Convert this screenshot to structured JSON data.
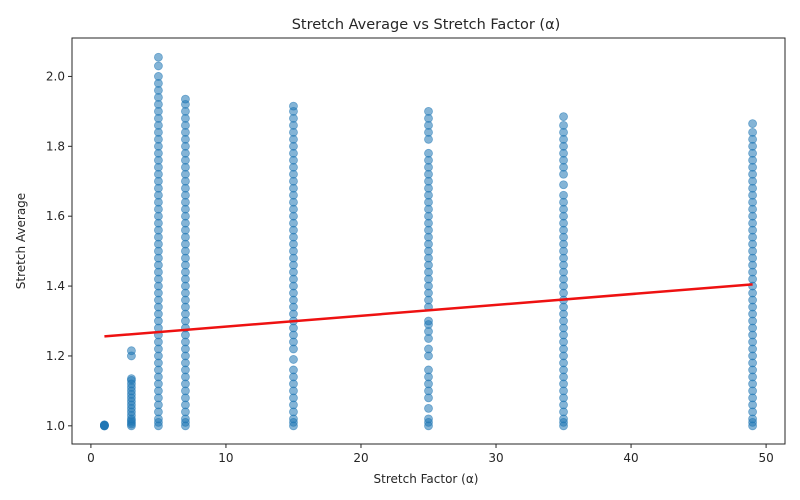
{
  "chart_data": {
    "type": "scatter",
    "title": "Stretch Average vs Stretch Factor (α)",
    "xlabel": "Stretch Factor (α)",
    "ylabel": "Stretch Average",
    "xlim": [
      -1.4,
      51.4
    ],
    "ylim": [
      0.948,
      2.11
    ],
    "x_ticks": [
      0,
      10,
      20,
      30,
      40,
      50
    ],
    "x_tick_labels": [
      "0",
      "10",
      "20",
      "30",
      "40",
      "50"
    ],
    "y_ticks": [
      1.0,
      1.2,
      1.4,
      1.6,
      1.8,
      2.0
    ],
    "y_tick_labels": [
      "1.0",
      "1.2",
      "1.4",
      "1.6",
      "1.8",
      "2.0"
    ],
    "grid": false,
    "legend": "none",
    "point_color": "#1f77b4",
    "point_alpha": 0.55,
    "trend_color": "#ee1111",
    "columns": [
      {
        "x": 1,
        "y": [
          1.0,
          1.001,
          1.002,
          1.0,
          1.001,
          1.003,
          1.0,
          1.002
        ]
      },
      {
        "x": 3,
        "y": [
          1.0,
          1.005,
          1.01,
          1.015,
          1.02,
          1.03,
          1.04,
          1.05,
          1.06,
          1.07,
          1.08,
          1.09,
          1.1,
          1.11,
          1.12,
          1.13,
          1.135,
          1.2,
          1.215
        ]
      },
      {
        "x": 5,
        "y": [
          1.0,
          1.01,
          1.02,
          1.04,
          1.06,
          1.08,
          1.1,
          1.12,
          1.14,
          1.16,
          1.18,
          1.2,
          1.22,
          1.24,
          1.26,
          1.28,
          1.3,
          1.32,
          1.34,
          1.36,
          1.38,
          1.4,
          1.42,
          1.44,
          1.46,
          1.48,
          1.5,
          1.52,
          1.54,
          1.56,
          1.58,
          1.6,
          1.62,
          1.64,
          1.66,
          1.68,
          1.7,
          1.72,
          1.74,
          1.76,
          1.78,
          1.8,
          1.82,
          1.84,
          1.86,
          1.88,
          1.9,
          1.92,
          1.94,
          1.96,
          1.98,
          2.0,
          2.03,
          2.055
        ]
      },
      {
        "x": 7,
        "y": [
          1.0,
          1.01,
          1.02,
          1.04,
          1.06,
          1.08,
          1.1,
          1.12,
          1.14,
          1.16,
          1.18,
          1.2,
          1.22,
          1.24,
          1.26,
          1.28,
          1.3,
          1.32,
          1.34,
          1.36,
          1.38,
          1.4,
          1.42,
          1.44,
          1.46,
          1.48,
          1.5,
          1.52,
          1.54,
          1.56,
          1.58,
          1.6,
          1.62,
          1.64,
          1.66,
          1.68,
          1.7,
          1.72,
          1.74,
          1.76,
          1.78,
          1.8,
          1.82,
          1.84,
          1.86,
          1.88,
          1.9,
          1.92,
          1.935
        ]
      },
      {
        "x": 15,
        "y": [
          1.0,
          1.01,
          1.02,
          1.04,
          1.06,
          1.08,
          1.1,
          1.12,
          1.14,
          1.16,
          1.19,
          1.22,
          1.24,
          1.26,
          1.28,
          1.3,
          1.32,
          1.34,
          1.36,
          1.38,
          1.4,
          1.42,
          1.44,
          1.46,
          1.48,
          1.5,
          1.52,
          1.54,
          1.56,
          1.58,
          1.6,
          1.62,
          1.64,
          1.66,
          1.68,
          1.7,
          1.72,
          1.74,
          1.76,
          1.78,
          1.8,
          1.82,
          1.84,
          1.86,
          1.88,
          1.9,
          1.915
        ]
      },
      {
        "x": 25,
        "y": [
          1.0,
          1.01,
          1.02,
          1.05,
          1.08,
          1.1,
          1.12,
          1.14,
          1.16,
          1.2,
          1.22,
          1.25,
          1.27,
          1.29,
          1.3,
          1.34,
          1.36,
          1.38,
          1.4,
          1.42,
          1.44,
          1.46,
          1.48,
          1.5,
          1.52,
          1.54,
          1.56,
          1.58,
          1.6,
          1.62,
          1.64,
          1.66,
          1.68,
          1.7,
          1.72,
          1.74,
          1.76,
          1.78,
          1.82,
          1.84,
          1.86,
          1.88,
          1.9
        ]
      },
      {
        "x": 35,
        "y": [
          1.0,
          1.01,
          1.02,
          1.04,
          1.06,
          1.08,
          1.1,
          1.12,
          1.14,
          1.16,
          1.18,
          1.2,
          1.22,
          1.24,
          1.26,
          1.28,
          1.3,
          1.32,
          1.34,
          1.36,
          1.38,
          1.4,
          1.42,
          1.44,
          1.46,
          1.48,
          1.5,
          1.52,
          1.54,
          1.56,
          1.58,
          1.6,
          1.62,
          1.64,
          1.66,
          1.69,
          1.72,
          1.74,
          1.76,
          1.78,
          1.8,
          1.82,
          1.84,
          1.86,
          1.885
        ]
      },
      {
        "x": 49,
        "y": [
          1.0,
          1.01,
          1.02,
          1.04,
          1.06,
          1.08,
          1.1,
          1.12,
          1.14,
          1.16,
          1.18,
          1.2,
          1.22,
          1.24,
          1.26,
          1.28,
          1.3,
          1.32,
          1.34,
          1.36,
          1.38,
          1.4,
          1.42,
          1.44,
          1.46,
          1.48,
          1.5,
          1.52,
          1.54,
          1.56,
          1.58,
          1.6,
          1.62,
          1.64,
          1.66,
          1.68,
          1.7,
          1.72,
          1.74,
          1.76,
          1.78,
          1.8,
          1.82,
          1.84,
          1.865
        ]
      }
    ],
    "trend_line": {
      "x": [
        1,
        49
      ],
      "y": [
        1.256,
        1.405
      ]
    }
  }
}
